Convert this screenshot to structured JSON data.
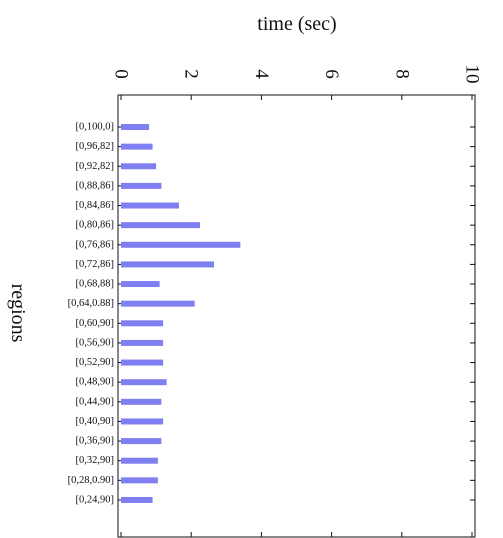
{
  "chart_data": {
    "type": "bar",
    "orientation": "horizontal",
    "title": "",
    "xlabel": "time (sec)",
    "ylabel": "regions",
    "xlim": [
      0,
      10
    ],
    "xticks": [
      0,
      2,
      4,
      6,
      8,
      10
    ],
    "xticklabels": [
      "0",
      "2",
      "4",
      "6",
      "8",
      "10"
    ],
    "grid": false,
    "categories": [
      "[0,100,0]",
      "[0,96,82]",
      "[0,92,82]",
      "[0,88,86]",
      "[0,84,86]",
      "[0,80,86]",
      "[0,76,86]",
      "[0,72,86]",
      "[0,68,88]",
      "[0,64,0.88]",
      "[0,60,90]",
      "[0,56,90]",
      "[0,52,90]",
      "[0,48,90]",
      "[0,44,90]",
      "[0,40,90]",
      "[0,36,90]",
      "[0,32,90]",
      "[0,28,0.90]",
      "[0,24,90]"
    ],
    "values": [
      0.8,
      0.9,
      1.0,
      1.15,
      1.65,
      2.25,
      3.4,
      2.65,
      1.1,
      2.1,
      1.2,
      1.2,
      1.2,
      1.3,
      1.15,
      1.2,
      1.15,
      1.05,
      1.05,
      0.9
    ],
    "bar_color": "#7f7ff2"
  }
}
